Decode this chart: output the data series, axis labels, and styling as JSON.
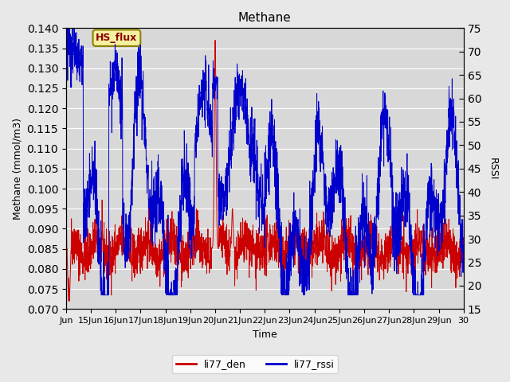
{
  "title": "Methane",
  "ylabel_left": "Methane (mmol/m3)",
  "ylabel_right": "RSSI",
  "xlabel": "Time",
  "ylim_left": [
    0.07,
    0.14
  ],
  "ylim_right": [
    15,
    75
  ],
  "yticks_left": [
    0.07,
    0.075,
    0.08,
    0.085,
    0.09,
    0.095,
    0.1,
    0.105,
    0.11,
    0.115,
    0.12,
    0.125,
    0.13,
    0.135,
    0.14
  ],
  "yticks_right": [
    15,
    20,
    25,
    30,
    35,
    40,
    45,
    50,
    55,
    60,
    65,
    70,
    75
  ],
  "xtick_labels": [
    "Jun",
    "15Jun",
    "16Jun",
    "17Jun",
    "18Jun",
    "19Jun",
    "20Jun",
    "21Jun",
    "22Jun",
    "23Jun",
    "24Jun",
    "25Jun",
    "26Jun",
    "27Jun",
    "28Jun",
    "29Jun",
    "30"
  ],
  "color_den": "#cc0000",
  "color_rssi": "#0000cc",
  "legend_labels": [
    "li77_den",
    "li77_rssi"
  ],
  "bg_color": "#e8e8e8",
  "plot_bg_color": "#d8d8d8",
  "annotation_text": "HS_flux",
  "annotation_bg": "#f5f0a0",
  "annotation_border": "#8b8000"
}
